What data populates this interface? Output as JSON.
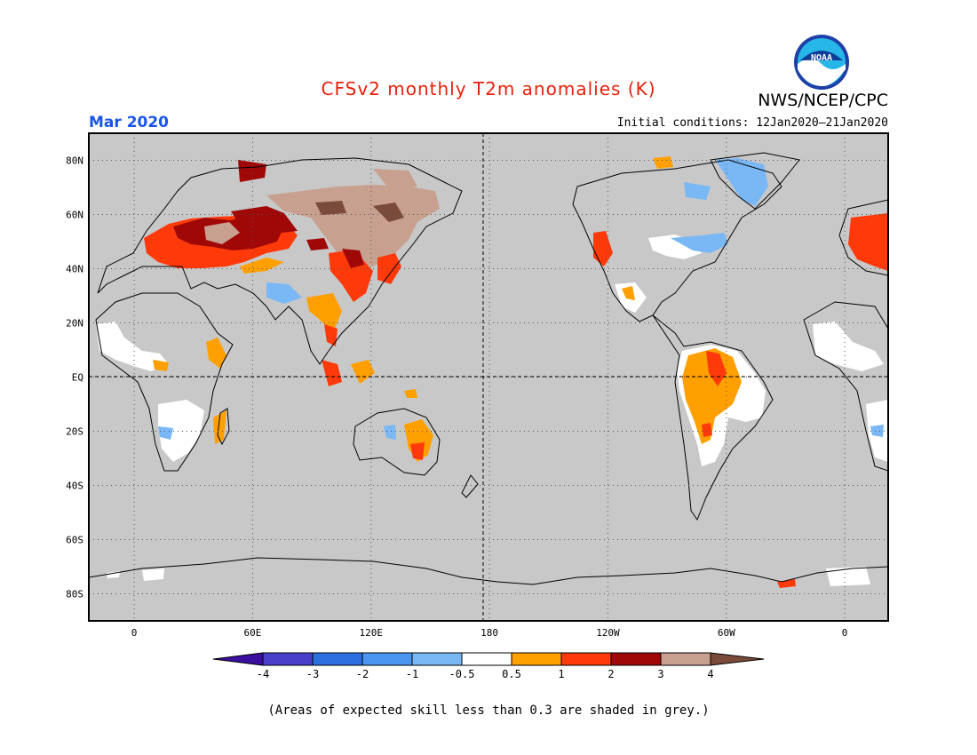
{
  "title": "CFSv2 monthly T2m anomalies (K)",
  "organization": "NWS/NCEP/CPC",
  "logo_text": "NOAA",
  "target_month": "Mar 2020",
  "initial_conditions": "Initial conditions: 12Jan2020–21Jan2020",
  "caption": "(Areas of expected skill less than 0.3 are shaded in grey.)",
  "map": {
    "background_color": "#c8c8c8",
    "lat_labels": [
      "80N",
      "60N",
      "40N",
      "20N",
      "EQ",
      "20S",
      "40S",
      "60S",
      "80S"
    ],
    "lat_values": [
      80,
      60,
      40,
      20,
      0,
      -20,
      -40,
      -60,
      -80
    ],
    "lon_labels": [
      "0",
      "60E",
      "120E",
      "180",
      "120W",
      "60W",
      "0"
    ],
    "lon_values": [
      0,
      60,
      120,
      180,
      240,
      300,
      360
    ],
    "reference_lines": [
      "EQ",
      "180"
    ]
  },
  "colorbar": {
    "levels": [
      "-4",
      "-3",
      "-2",
      "-1",
      "-0.5",
      "0.5",
      "1",
      "2",
      "3",
      "4"
    ],
    "colors": [
      "#3a0fa0",
      "#4a3fc8",
      "#2c6fe0",
      "#4a96f0",
      "#7ab8f5",
      "#ffffff",
      "#ffa000",
      "#ff3a0a",
      "#a00808",
      "#c8a090",
      "#7a4a3a"
    ]
  }
}
